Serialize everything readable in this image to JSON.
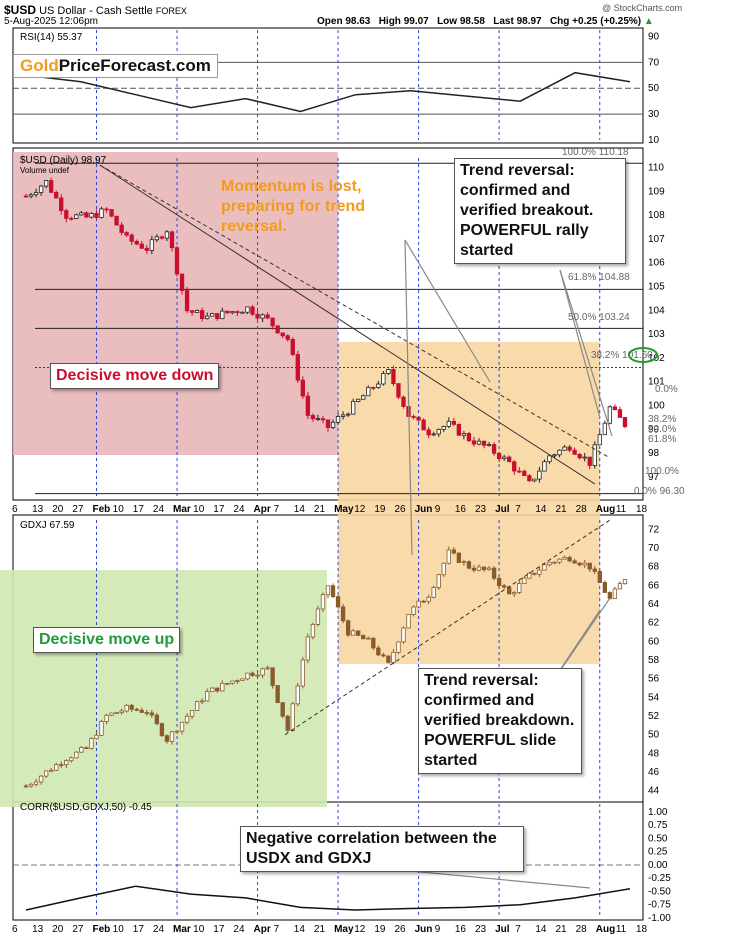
{
  "header": {
    "symbol": "$USD",
    "name": "US Dollar - Cash Settle",
    "exchange": "FOREX",
    "datetime": "5-Aug-2025 12:06pm",
    "open": "Open 98.63",
    "high": "High 99.07",
    "low": "Low 98.58",
    "last": "Last 98.97",
    "chg": "Chg +0.25 (+0.25%)",
    "chg_icon": "triangle-up-icon",
    "watermark": "@ StockCharts.com"
  },
  "logo": {
    "gold": "Gold",
    "rest": "PriceForecast.com"
  },
  "colors": {
    "red_zone": "#e8b6b8",
    "orange_zone": "#f8d7a2",
    "green_zone": "#cfe8b1",
    "up": "#b0b0b0",
    "down": "#c8102e",
    "gdxj": "#8b5a2b"
  },
  "panels": {
    "rsi": {
      "label": "RSI(14) 55.37",
      "ticks": [
        "90",
        "70",
        "50",
        "30",
        "10"
      ]
    },
    "usd": {
      "label": "$USD (Daily) 98.97",
      "sublabel": "Volume undef",
      "ticks": [
        "110",
        "109",
        "108",
        "107",
        "106",
        "105",
        "104",
        "103",
        "102",
        "101",
        "100",
        "99",
        "98",
        "97"
      ],
      "fib_labels": {
        "f100top": "100.0% 110.18",
        "f618": "61.8% 104.88",
        "f50": "50.0% 103.24",
        "f382": "38.2% 101.60",
        "s0": "0.0%",
        "s382": "38.2%",
        "s50": "50.0%",
        "s618": "61.8%",
        "s100": "100.0%",
        "s0b": "0.0% 96.30"
      }
    },
    "gdxj": {
      "label": "GDXJ 67.59",
      "ticks": [
        "72",
        "70",
        "68",
        "66",
        "64",
        "62",
        "60",
        "58",
        "56",
        "54",
        "52",
        "50",
        "48",
        "46",
        "44"
      ]
    },
    "corr": {
      "label": "CORR($USD,GDXJ,50) -0.45",
      "ticks": [
        "1.00",
        "0.75",
        "0.50",
        "0.25",
        "0.00",
        "-0.25",
        "-0.50",
        "-0.75",
        "-1.00"
      ]
    }
  },
  "x_axis": {
    "labels": [
      "6",
      "13",
      "20",
      "27",
      "Feb",
      "10",
      "17",
      "24",
      "Mar",
      "10",
      "17",
      "24",
      "Apr",
      "7",
      "14",
      "21",
      "May",
      "12",
      "19",
      "26",
      "Jun",
      "9",
      "16",
      "23",
      "Jul",
      "7",
      "14",
      "21",
      "28",
      "Aug",
      "11",
      "18"
    ]
  },
  "annotations": {
    "momentum": "Momentum is lost, preparing for trend reversal.",
    "trend_usd": "Trend reversal: confirmed and verified breakout. POWERFUL rally started",
    "decisive_down": "Decisive move down",
    "decisive_up": "Decisive move up",
    "trend_gdxj": "Trend reversal: confirmed and verified breakdown. POWERFUL slide started",
    "negative_corr": "Negative correlation between the USDX and GDXJ"
  },
  "chart_data": [
    {
      "type": "line",
      "title": "RSI(14) 55.37",
      "ylim": [
        10,
        90
      ],
      "x": [
        "Jan-06",
        "Jan-27",
        "Feb-17",
        "Mar-10",
        "Mar-31",
        "Apr-21",
        "May-12",
        "Jun-02",
        "Jun-23",
        "Jul-14",
        "Jul-28",
        "Aug-05"
      ],
      "series": [
        {
          "values": [
            60,
            55,
            45,
            35,
            42,
            32,
            45,
            48,
            44,
            40,
            62,
            55
          ]
        }
      ],
      "ref_lines": [
        70,
        50,
        30
      ]
    },
    {
      "type": "candlestick",
      "title": "$USD (Daily) 98.97",
      "ylim": [
        96,
        110.5
      ],
      "x": [
        "Jan-06",
        "Jan-13",
        "Jan-20",
        "Jan-27",
        "Feb-03",
        "Feb-10",
        "Feb-17",
        "Feb-24",
        "Mar-03",
        "Mar-10",
        "Mar-17",
        "Mar-24",
        "Mar-31",
        "Apr-07",
        "Apr-14",
        "Apr-21",
        "Apr-28",
        "May-05",
        "May-12",
        "May-19",
        "May-26",
        "Jun-02",
        "Jun-09",
        "Jun-16",
        "Jun-23",
        "Jun-30",
        "Jul-07",
        "Jul-14",
        "Jul-21",
        "Jul-28",
        "Aug-05"
      ],
      "series": [
        {
          "values": [
            108.8,
            109.4,
            108.0,
            107.9,
            108.2,
            107.0,
            106.6,
            107.4,
            104.0,
            103.7,
            103.9,
            104.1,
            103.6,
            102.8,
            99.6,
            99.1,
            99.8,
            100.6,
            101.4,
            99.6,
            98.9,
            99.2,
            98.6,
            98.2,
            97.6,
            96.7,
            97.9,
            98.3,
            97.6,
            99.9,
            98.97
          ]
        }
      ],
      "fib_levels": {
        "100.0%": 110.18,
        "61.8%": 104.88,
        "50.0%": 103.24,
        "38.2%": 101.6,
        "0.0%": 96.3
      }
    },
    {
      "type": "candlestick",
      "title": "GDXJ 67.59",
      "ylim": [
        43,
        73
      ],
      "x": [
        "Jan-06",
        "Jan-13",
        "Jan-20",
        "Jan-27",
        "Feb-03",
        "Feb-10",
        "Feb-17",
        "Feb-24",
        "Mar-03",
        "Mar-10",
        "Mar-17",
        "Mar-24",
        "Mar-31",
        "Apr-07",
        "Apr-14",
        "Apr-21",
        "Apr-28",
        "May-05",
        "May-12",
        "May-19",
        "May-26",
        "Jun-02",
        "Jun-09",
        "Jun-16",
        "Jun-23",
        "Jun-30",
        "Jul-07",
        "Jul-14",
        "Jul-21",
        "Jul-28",
        "Aug-05"
      ],
      "series": [
        {
          "values": [
            44.5,
            46.0,
            47.5,
            48.5,
            52.0,
            52.8,
            52.5,
            49.5,
            52.0,
            54.5,
            55.5,
            56.5,
            57.0,
            50.5,
            60.5,
            66.0,
            61.0,
            60.0,
            57.5,
            63.0,
            65.0,
            69.5,
            68.0,
            67.5,
            65.0,
            67.0,
            68.5,
            69.0,
            68.0,
            64.5,
            67.59
          ]
        }
      ]
    },
    {
      "type": "line",
      "title": "CORR($USD,GDXJ,50) -0.45",
      "ylim": [
        -1.0,
        1.0
      ],
      "x": [
        "Jan-06",
        "Jan-27",
        "Feb-17",
        "Mar-10",
        "Mar-31",
        "Apr-21",
        "May-12",
        "Jun-02",
        "Jun-23",
        "Jul-14",
        "Jul-28",
        "Aug-05"
      ],
      "series": [
        {
          "values": [
            -0.85,
            -0.62,
            -0.4,
            -0.55,
            -0.62,
            -0.8,
            -0.85,
            -0.82,
            -0.8,
            -0.75,
            -0.62,
            -0.45
          ]
        }
      ]
    }
  ]
}
